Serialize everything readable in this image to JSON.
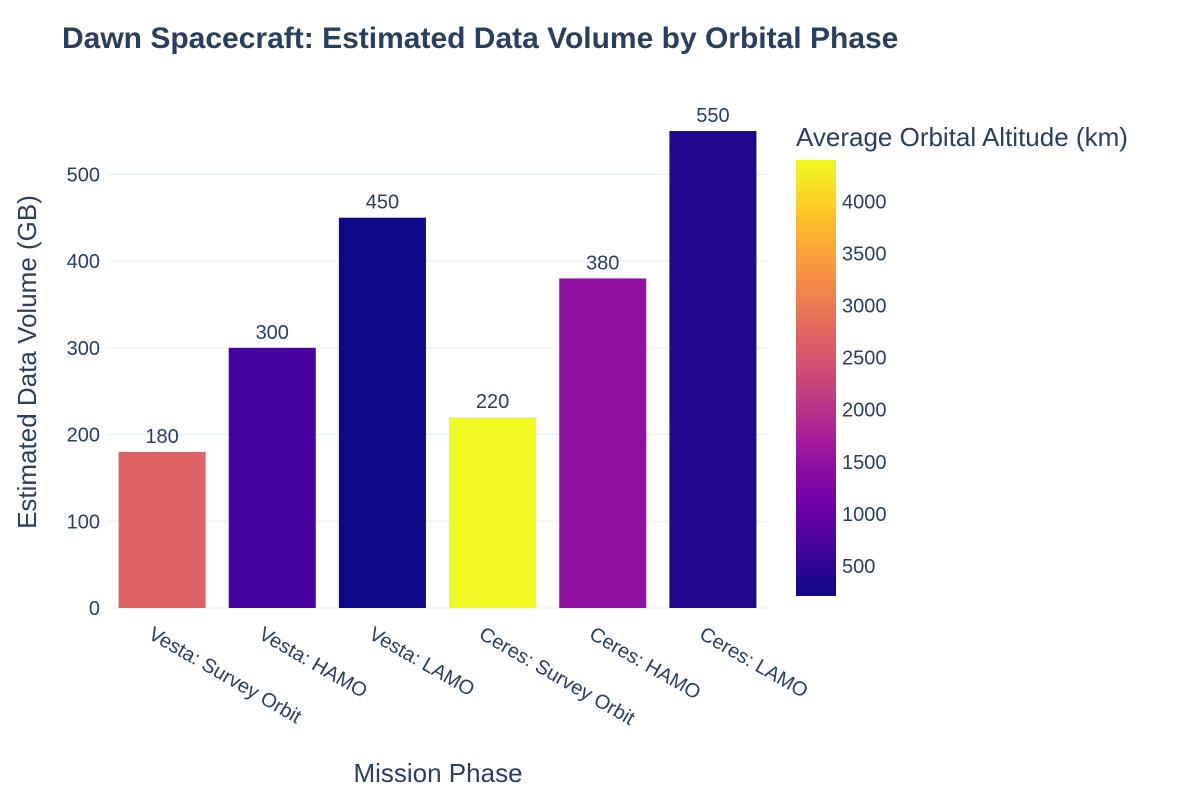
{
  "chart_data": {
    "type": "bar",
    "title": "Dawn Spacecraft: Estimated Data Volume by Orbital Phase",
    "xlabel": "Mission Phase",
    "ylabel": "Estimated Data Volume (GB)",
    "categories": [
      "Vesta: Survey Orbit",
      "Vesta: HAMO",
      "Vesta: LAMO",
      "Ceres: Survey Orbit",
      "Ceres: HAMO",
      "Ceres: LAMO"
    ],
    "values": [
      180,
      300,
      450,
      220,
      380,
      550
    ],
    "color_values": [
      2700,
      680,
      210,
      4400,
      1470,
      385
    ],
    "ylim": [
      0,
      550
    ],
    "yticks": [
      0,
      100,
      200,
      300,
      400,
      500
    ],
    "grid": true,
    "colorbar": {
      "title": "Average Orbital Altitude (km)",
      "range": [
        210,
        4400
      ],
      "ticks": [
        500,
        1000,
        1500,
        2000,
        2500,
        3000,
        3500,
        4000
      ],
      "colorscale": [
        "#0d0887",
        "#46039f",
        "#7201a8",
        "#9c179e",
        "#bd3786",
        "#d8576b",
        "#ed7953",
        "#fb9f3a",
        "#fdca26",
        "#f0f921"
      ]
    },
    "colors": {
      "text": "#2a3f5f",
      "grid": "#e5ecf6"
    }
  }
}
